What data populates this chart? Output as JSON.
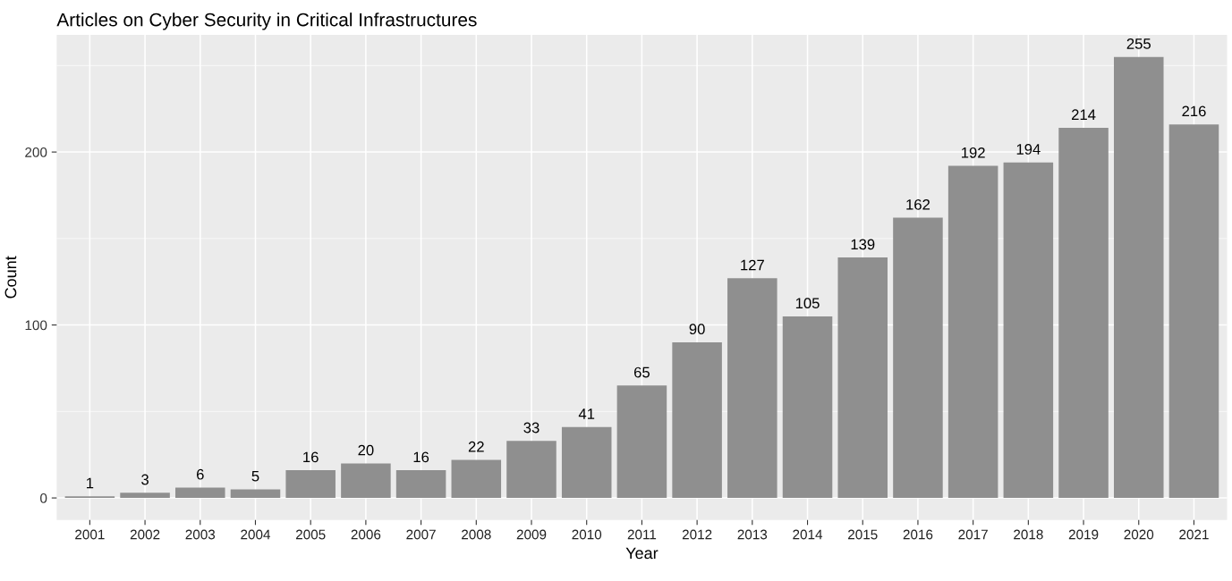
{
  "chart_data": {
    "type": "bar",
    "title": "Articles on Cyber Security in Critical Infrastructures",
    "xlabel": "Year",
    "ylabel": "Count",
    "categories": [
      "2001",
      "2002",
      "2003",
      "2004",
      "2005",
      "2006",
      "2007",
      "2008",
      "2009",
      "2010",
      "2011",
      "2012",
      "2013",
      "2014",
      "2015",
      "2016",
      "2017",
      "2018",
      "2019",
      "2020",
      "2021"
    ],
    "values": [
      1,
      3,
      6,
      5,
      16,
      20,
      16,
      22,
      33,
      41,
      65,
      90,
      127,
      105,
      139,
      162,
      192,
      194,
      214,
      255,
      216
    ],
    "color": "#8f8f8f",
    "ylim": [
      -12.75,
      267.75
    ],
    "yticks": [
      0,
      100,
      200
    ],
    "grid": true,
    "data_labels": true
  }
}
